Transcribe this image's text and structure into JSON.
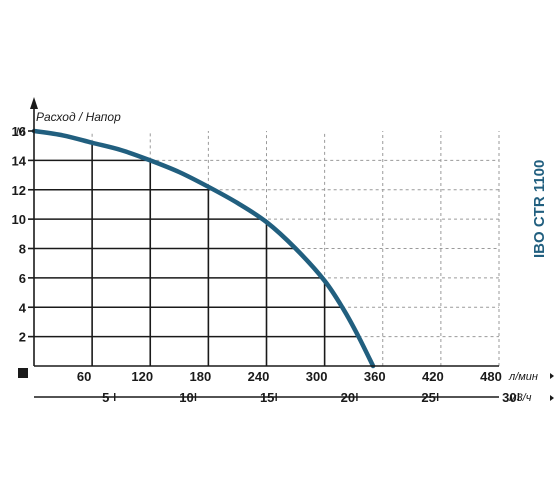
{
  "chart_data": {
    "type": "line",
    "title": "Расход / Напор",
    "model": "IBO CTR 1100",
    "y_unit": "М",
    "x_unit": "л/мин",
    "x2_unit": "м3/ч",
    "xlim": [
      0,
      480
    ],
    "ylim": [
      0,
      16
    ],
    "x_ticks": [
      60,
      120,
      180,
      240,
      300,
      360,
      420,
      480
    ],
    "x_tick_labels": [
      "60",
      "120",
      "180",
      "240",
      "300",
      "360",
      "420",
      "480"
    ],
    "y_ticks": [
      2,
      4,
      6,
      8,
      10,
      12,
      14,
      16
    ],
    "y_tick_labels": [
      "2",
      "4",
      "6",
      "8",
      "10",
      "12",
      "14",
      "16"
    ],
    "x2_ticks": [
      5,
      10,
      15,
      20,
      25,
      30
    ],
    "x2_tick_labels": [
      "5",
      "10",
      "15",
      "20",
      "25",
      "30"
    ],
    "grid": true,
    "series": [
      {
        "x": [
          0,
          30,
          60,
          90,
          120,
          150,
          180,
          210,
          240,
          270,
          300,
          320,
          335,
          350
        ],
        "y": [
          16,
          15.7,
          15.2,
          14.7,
          14.0,
          13.2,
          12.2,
          11.1,
          9.8,
          8.0,
          5.8,
          3.8,
          2.0,
          0
        ]
      }
    ],
    "colors": {
      "curve": "#215f7f",
      "grid_major": "#1a1a1a",
      "grid_minor": "#9a9a9a",
      "model_label": "#215f7f"
    }
  }
}
